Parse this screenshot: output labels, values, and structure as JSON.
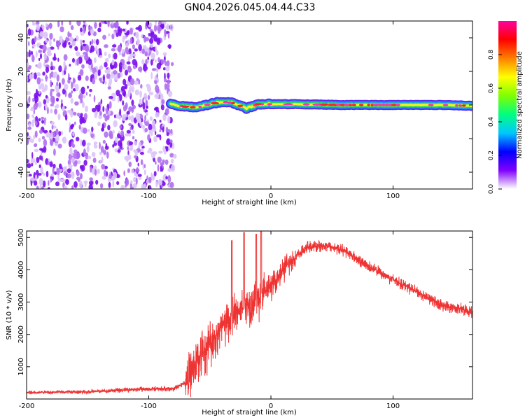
{
  "title": "GN04.2026.045.04.44.C33",
  "chart_data": [
    {
      "type": "heatmap",
      "xlabel": "Height of straight line (km)",
      "ylabel": "Frequency (Hz)",
      "xlim": [
        -200,
        165
      ],
      "ylim": [
        -50,
        50
      ],
      "xticks": [
        -200,
        -100,
        0,
        100
      ],
      "yticks": [
        -40,
        -20,
        0,
        20,
        40
      ],
      "colorbar": {
        "label": "Normalized spectral amplitude",
        "range": [
          0,
          1
        ],
        "ticks": [
          "0.0",
          "0.2",
          "0.4",
          "0.6",
          "0.8"
        ],
        "colormap": [
          "#ffffff",
          "#8000ff",
          "#0000ff",
          "#00c8ff",
          "#00ff80",
          "#80ff00",
          "#ffff00",
          "#ff8000",
          "#ff0000",
          "#ff00a0"
        ]
      },
      "noise_region": {
        "x": [
          -200,
          -80
        ],
        "y": [
          -50,
          50
        ]
      },
      "signal_track": [
        {
          "x": -82,
          "y": 0.5
        },
        {
          "x": -70,
          "y": -1.0
        },
        {
          "x": -60,
          "y": -1.5
        },
        {
          "x": -50,
          "y": 0.5
        },
        {
          "x": -40,
          "y": 2.0
        },
        {
          "x": -30,
          "y": 1.0
        },
        {
          "x": -20,
          "y": -2.0
        },
        {
          "x": -10,
          "y": 0.5
        },
        {
          "x": 0,
          "y": 0.5
        },
        {
          "x": 20,
          "y": 0.5
        },
        {
          "x": 60,
          "y": 0.0
        },
        {
          "x": 100,
          "y": 0.0
        },
        {
          "x": 140,
          "y": 0.0
        },
        {
          "x": 165,
          "y": -0.5
        }
      ],
      "grid": false
    },
    {
      "type": "line",
      "xlabel": "Height of straight line (km)",
      "ylabel": "SNR (10 * v/v)",
      "xlim": [
        -200,
        165
      ],
      "ylim": [
        0,
        5200
      ],
      "xticks": [
        -200,
        -100,
        0,
        100
      ],
      "yticks": [
        1000,
        2000,
        3000,
        4000,
        5000
      ],
      "color": "#ee3333",
      "grid": false,
      "trend": [
        {
          "x": -200,
          "y": 200
        },
        {
          "x": -150,
          "y": 220
        },
        {
          "x": -110,
          "y": 300
        },
        {
          "x": -80,
          "y": 320
        },
        {
          "x": -70,
          "y": 500
        },
        {
          "x": -60,
          "y": 1200
        },
        {
          "x": -50,
          "y": 1700
        },
        {
          "x": -40,
          "y": 2200
        },
        {
          "x": -30,
          "y": 2600
        },
        {
          "x": -20,
          "y": 2900
        },
        {
          "x": -10,
          "y": 3100
        },
        {
          "x": 0,
          "y": 3500
        },
        {
          "x": 10,
          "y": 4000
        },
        {
          "x": 20,
          "y": 4400
        },
        {
          "x": 30,
          "y": 4700
        },
        {
          "x": 45,
          "y": 4750
        },
        {
          "x": 60,
          "y": 4600
        },
        {
          "x": 80,
          "y": 4100
        },
        {
          "x": 100,
          "y": 3700
        },
        {
          "x": 120,
          "y": 3300
        },
        {
          "x": 140,
          "y": 2900
        },
        {
          "x": 165,
          "y": 2700
        }
      ],
      "spikes": [
        {
          "x": -32,
          "y": 4900
        },
        {
          "x": -22,
          "y": 5150
        },
        {
          "x": -12,
          "y": 5100
        },
        {
          "x": -8,
          "y": 5200
        }
      ]
    }
  ]
}
